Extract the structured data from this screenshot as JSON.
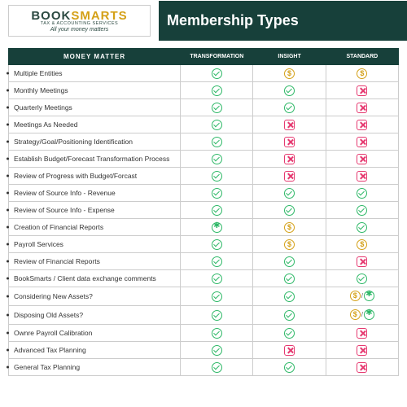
{
  "logo": {
    "main_a": "BOOK",
    "main_b": "SMARTS",
    "sub": "TAX & ACCOUNTING SERVICES",
    "tagline": "All your money matters"
  },
  "title": "Membership Types",
  "colors": {
    "header_bg": "#17403a",
    "check": "#2eb867",
    "cross": "#e63970",
    "dollar": "#d4a017",
    "border": "#cccccc"
  },
  "columns": {
    "feature": "MONEY MATTER",
    "tier1": "TRANSFORMATION",
    "tier2": "INSIGHT",
    "tier3": "STANDARD"
  },
  "icon_types": [
    "check",
    "cross",
    "dollar",
    "star",
    "dollar_star"
  ],
  "rows": [
    {
      "label": "Multiple Entities",
      "t1": "check",
      "t2": "dollar",
      "t3": "dollar"
    },
    {
      "label": "Monthly Meetings",
      "t1": "check",
      "t2": "check",
      "t3": "cross"
    },
    {
      "label": "Quarterly Meetings",
      "t1": "check",
      "t2": "check",
      "t3": "cross"
    },
    {
      "label": "Meetings As Needed",
      "t1": "check",
      "t2": "cross",
      "t3": "cross"
    },
    {
      "label": "Strategy/Goal/Positioning Identification",
      "t1": "check",
      "t2": "cross",
      "t3": "cross"
    },
    {
      "label": "Establish Budget/Forecast Transformation Process",
      "t1": "check",
      "t2": "cross",
      "t3": "cross"
    },
    {
      "label": "Review of Progress with Budget/Forcast",
      "t1": "check",
      "t2": "cross",
      "t3": "cross"
    },
    {
      "label": "Review of Source Info - Revenue",
      "t1": "check",
      "t2": "check",
      "t3": "check"
    },
    {
      "label": "Review of Source Info - Expense",
      "t1": "check",
      "t2": "check",
      "t3": "check"
    },
    {
      "label": "Creation of Financial Reports",
      "t1": "star",
      "t2": "dollar",
      "t3": "check"
    },
    {
      "label": "Payroll Services",
      "t1": "check",
      "t2": "dollar",
      "t3": "dollar"
    },
    {
      "label": "Review of Financial Reports",
      "t1": "check",
      "t2": "check",
      "t3": "cross"
    },
    {
      "label": "BookSmarts / Client data exchange comments",
      "t1": "check",
      "t2": "check",
      "t3": "check"
    },
    {
      "label": "Considering New Assets?",
      "t1": "check",
      "t2": "check",
      "t3": "dollar_star"
    },
    {
      "label": "Disposing Old Assets?",
      "t1": "check",
      "t2": "check",
      "t3": "dollar_star"
    },
    {
      "label": "Ownre Payroll Calibration",
      "t1": "check",
      "t2": "check",
      "t3": "cross"
    },
    {
      "label": "Advanced Tax Planning",
      "t1": "check",
      "t2": "cross",
      "t3": "cross"
    },
    {
      "label": "General Tax Planning",
      "t1": "check",
      "t2": "check",
      "t3": "cross"
    }
  ]
}
